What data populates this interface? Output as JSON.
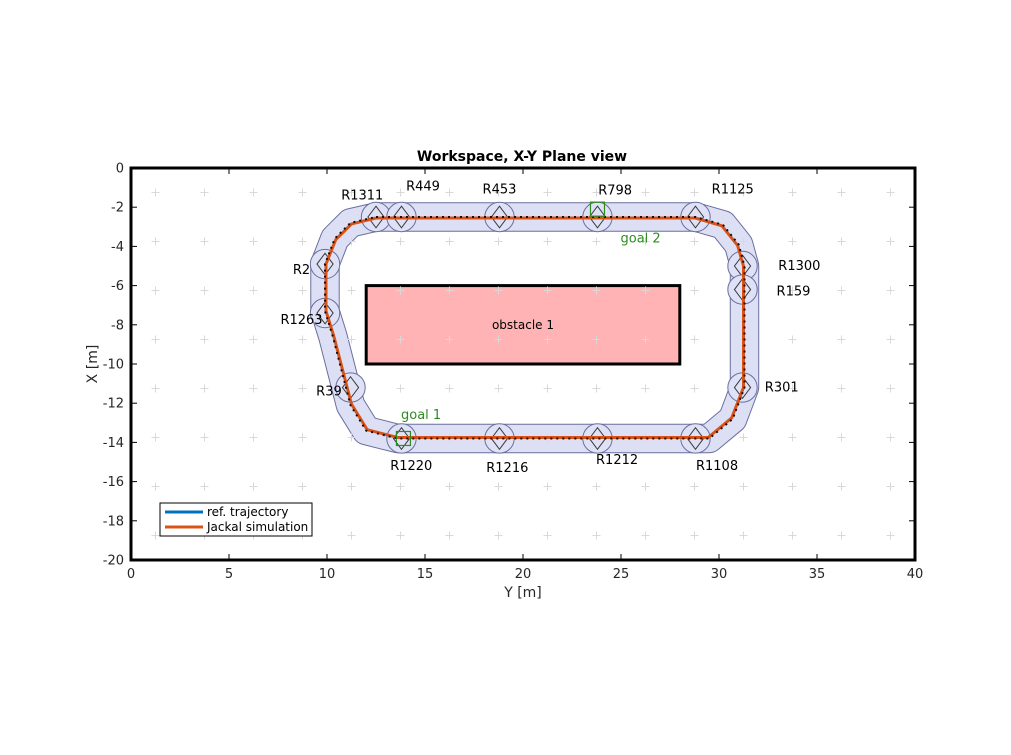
{
  "chart_data": {
    "type": "line",
    "title": "Workspace, X-Y Plane view",
    "xlabel": "Y [m]",
    "ylabel": "X [m]",
    "xlim": [
      0,
      40
    ],
    "ylim": [
      -20,
      0
    ],
    "xticks": [
      "0",
      "5",
      "10",
      "15",
      "20",
      "25",
      "30",
      "35",
      "40"
    ],
    "yticks": [
      "0",
      "-2",
      "-4",
      "-6",
      "-8",
      "-10",
      "-12",
      "-14",
      "-16",
      "-18",
      "-20"
    ],
    "grid": "off",
    "legend_position": "bottom-left",
    "series": [
      {
        "name": "ref. trajectory",
        "color": "#0072bd",
        "points": [
          [
            12.5,
            -2.5
          ],
          [
            28.8,
            -2.5
          ],
          [
            30.2,
            -2.9
          ],
          [
            31,
            -3.9
          ],
          [
            31.3,
            -5
          ],
          [
            31.3,
            -11.2
          ],
          [
            30.7,
            -12.8
          ],
          [
            29.5,
            -13.8
          ],
          [
            13.6,
            -13.8
          ],
          [
            12,
            -13.4
          ],
          [
            11.2,
            -12.1
          ],
          [
            10.3,
            -8.6
          ],
          [
            9.9,
            -7.3
          ],
          [
            9.9,
            -4.9
          ],
          [
            10.4,
            -3.6
          ],
          [
            11.2,
            -2.8
          ],
          [
            12.5,
            -2.5
          ]
        ]
      },
      {
        "name": "Jackal simulation",
        "color": "#d95319",
        "points": [
          [
            12.5,
            -2.55
          ],
          [
            28.8,
            -2.55
          ],
          [
            30.15,
            -2.95
          ],
          [
            30.95,
            -3.95
          ],
          [
            31.25,
            -5
          ],
          [
            31.25,
            -11.2
          ],
          [
            30.65,
            -12.75
          ],
          [
            29.45,
            -13.75
          ],
          [
            13.6,
            -13.75
          ],
          [
            12.05,
            -13.35
          ],
          [
            11.25,
            -12.05
          ],
          [
            10.35,
            -8.6
          ],
          [
            9.95,
            -7.3
          ],
          [
            9.95,
            -4.9
          ],
          [
            10.45,
            -3.65
          ],
          [
            11.25,
            -2.85
          ],
          [
            12.5,
            -2.55
          ]
        ]
      }
    ],
    "regions": [
      {
        "name": "R1311",
        "x": 12.5,
        "y": -2.5,
        "label_x": 11.8,
        "label_y": -1.4
      },
      {
        "name": "R449",
        "x": 13.8,
        "y": -2.5,
        "label_x": 14.9,
        "label_y": -0.95
      },
      {
        "name": "R453",
        "x": 18.8,
        "y": -2.5,
        "label_x": 18.8,
        "label_y": -1.1
      },
      {
        "name": "R798",
        "x": 23.8,
        "y": -2.5,
        "label_x": 24.7,
        "label_y": -1.15
      },
      {
        "name": "R1125",
        "x": 28.8,
        "y": -2.5,
        "label_x": 30.7,
        "label_y": -1.1
      },
      {
        "name": "R1300",
        "x": 31.2,
        "y": -5,
        "label_x": 34.1,
        "label_y": -5
      },
      {
        "name": "R159",
        "x": 31.2,
        "y": -6.2,
        "label_x": 33.8,
        "label_y": -6.3
      },
      {
        "name": "R301",
        "x": 31.2,
        "y": -11.2,
        "label_x": 33.2,
        "label_y": -11.2
      },
      {
        "name": "R1108",
        "x": 28.8,
        "y": -13.8,
        "label_x": 29.9,
        "label_y": -15.2
      },
      {
        "name": "R1212",
        "x": 23.8,
        "y": -13.8,
        "label_x": 24.8,
        "label_y": -14.9
      },
      {
        "name": "R1216",
        "x": 18.8,
        "y": -13.8,
        "label_x": 19.2,
        "label_y": -15.3
      },
      {
        "name": "R1220",
        "x": 13.8,
        "y": -13.8,
        "label_x": 14.3,
        "label_y": -15.2
      },
      {
        "name": "R39",
        "x": 11.2,
        "y": -11.2,
        "label_x": 10.1,
        "label_y": -11.4
      },
      {
        "name": "R1263",
        "x": 9.9,
        "y": -7.4,
        "label_x": 8.7,
        "label_y": -7.75
      },
      {
        "name": "R2",
        "x": 9.9,
        "y": -4.9,
        "label_x": 8.7,
        "label_y": -5.2
      }
    ],
    "obstacles": [
      {
        "label": "obstacle 1",
        "y_min": 12,
        "y_max": 28,
        "x_min": -10,
        "x_max": -6,
        "color": "#ffb3b5"
      }
    ],
    "goals": [
      {
        "label": "goal 1",
        "x": 13.9,
        "y": -13.8,
        "label_x": 14.8,
        "label_y": -12.6,
        "color": "#2e8b22"
      },
      {
        "label": "goal 2",
        "x": 23.8,
        "y": -2.1,
        "label_x": 26,
        "label_y": -3.6,
        "color": "#2e8b22"
      }
    ],
    "colors": {
      "corridor": "#dde0f5",
      "corridor_edge": "#6a6f9c",
      "frame": "#000000",
      "plus_markers": "#d9d9d9",
      "waypoints": "#000000"
    }
  }
}
